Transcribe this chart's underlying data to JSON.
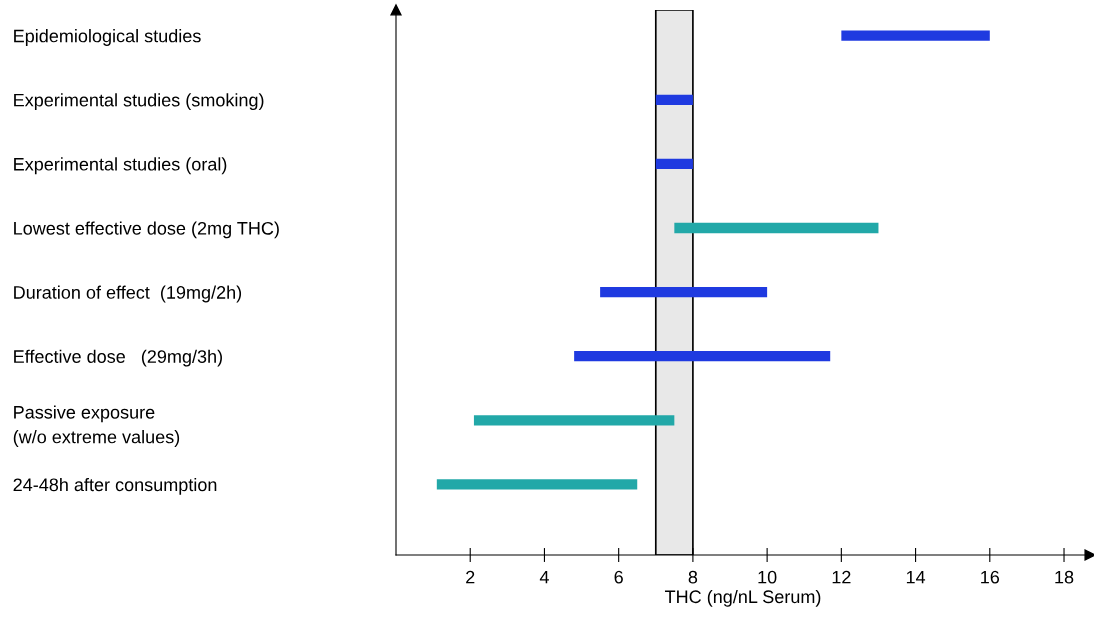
{
  "chart_data": {
    "type": "bar",
    "orientation": "horizontal",
    "categories": [
      "Epidemiological studies",
      "Experimental studies (smoking)",
      "Experimental studies (oral)",
      "Lowest effective dose (2mg THC)",
      "Duration of effect  (19mg/2h)",
      "Effective dose   (29mg/3h)",
      "Passive exposure\n(w/o extreme values)",
      "24-48h after consumption"
    ],
    "base": [
      12,
      7,
      7,
      7.5,
      5.5,
      4.8,
      2.1,
      1.1
    ],
    "values": [
      4,
      1,
      1,
      5.5,
      4.5,
      6.9,
      5.4,
      5.4
    ],
    "colors": [
      "#1f3ae0",
      "#1f3ae0",
      "#1f3ae0",
      "#22a8a8",
      "#1f3ae0",
      "#1f3ae0",
      "#22a8a8",
      "#22a8a8"
    ],
    "xlabel": "THC (ng/nL Serum)",
    "xlim": [
      0,
      18.7
    ],
    "xticks": [
      2,
      4,
      6,
      8,
      10,
      12,
      14,
      16,
      18
    ],
    "bands": [
      {
        "axis": "x",
        "from": 7,
        "to": 8,
        "color": "#e8e8e8"
      }
    ],
    "grid": false
  }
}
